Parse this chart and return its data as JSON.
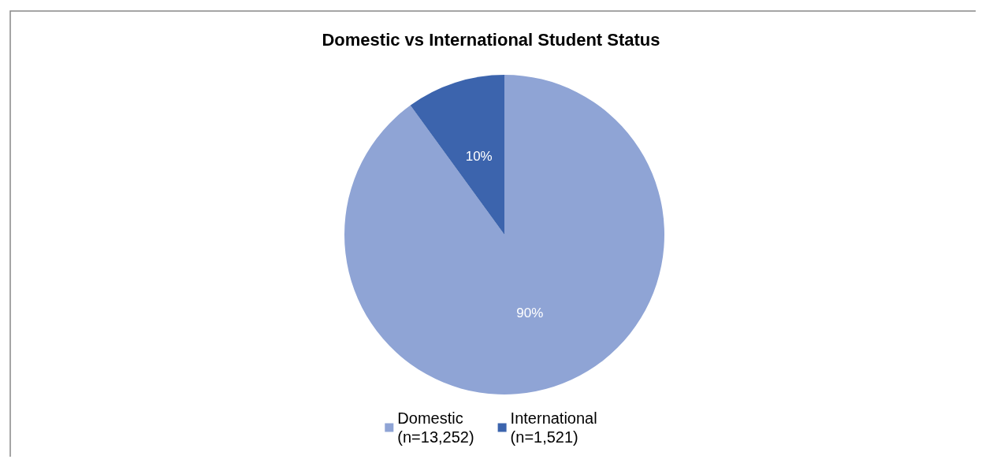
{
  "chart_data": {
    "type": "pie",
    "title": "Domestic vs International Student Status",
    "categories": [
      "Domestic\n(n=13,252)",
      "International\n(n=1,521)"
    ],
    "values": [
      90,
      10
    ],
    "colors": [
      "#8fa4d5",
      "#3c64ad"
    ],
    "value_labels": [
      "90%",
      "10%"
    ],
    "legend": "bottom"
  }
}
